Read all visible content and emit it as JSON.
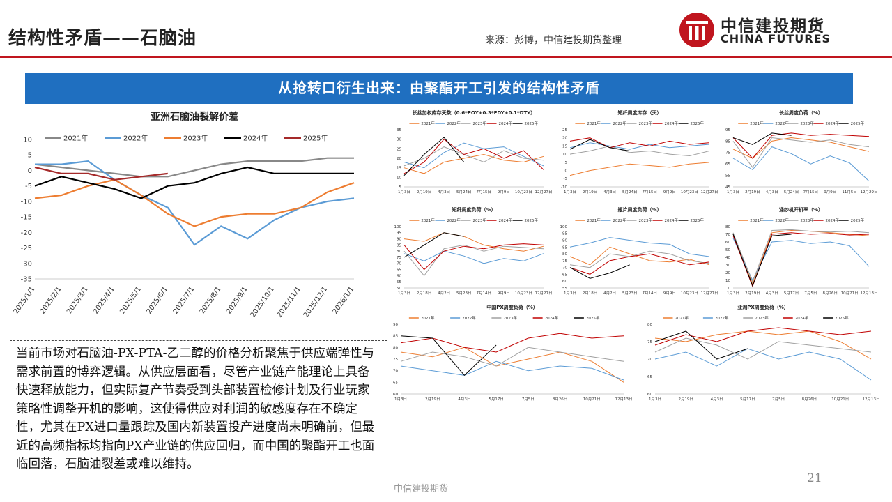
{
  "header": {
    "title": "结构性矛盾——石脑油",
    "source": "来源：彭博，中信建投期货整理",
    "logo_cn": "中信建投期货",
    "logo_en": "CHINA FUTURES",
    "brand_color": "#c0151e"
  },
  "banner": {
    "text": "从抢转口衍生出来：由聚酯开工引发的结构性矛盾",
    "color": "#1f6fc0"
  },
  "commentary": "当前市场对石脑油-PX-PTA-乙二醇的价格分析聚焦于供应端弹性与需求前置的博弈逻辑。从供应层面看，尽管产业链产能理论上具备快速释放能力，但实际复产节奏受到头部装置检修计划及行业玩家策略性调整开机的影响，这使得供应对利润的敏感度存在不确定性，尤其在PX进口量跟踪及国内新装置投产进度尚未明确前，但最近的高频指标均指向PX产业链的供应回归，而中国的聚酯开工也面临回落，石脑油裂差或难以维持。",
  "footer": {
    "text": "中信建投期货",
    "page": "21"
  },
  "chart_data": [
    {
      "type": "line",
      "title": "亚洲石脑油裂解价差",
      "x": [
        "2025/1/1",
        "2025/2/1",
        "2025/3/1",
        "2025/4/1",
        "2025/5/1",
        "2025/6/1",
        "2025/7/1",
        "2025/8/1",
        "2025/9/1",
        "2025/10/1",
        "2025/11/1",
        "2025/12/1",
        "2026/1/1"
      ],
      "ylim": [
        -35,
        10
      ],
      "yticks": [
        10,
        5,
        0,
        -5,
        -10,
        -15,
        -20,
        -25,
        -30,
        -35
      ],
      "legend": "top",
      "series": [
        {
          "name": "2021年",
          "color": "#888888",
          "values": [
            2,
            1,
            0,
            -1,
            -2,
            -2,
            0,
            2,
            3,
            3,
            3,
            4,
            4
          ]
        },
        {
          "name": "2022年",
          "color": "#5b9bd5",
          "values": [
            2,
            2,
            3,
            -3,
            -8,
            -12,
            -24,
            -18,
            -22,
            -16,
            -12,
            -10,
            -9
          ]
        },
        {
          "name": "2023年",
          "color": "#ed7d31",
          "values": [
            -9,
            -8,
            -5,
            -3,
            -8,
            -14,
            -18,
            -15,
            -14,
            -14,
            -12,
            -7,
            -4
          ]
        },
        {
          "name": "2024年",
          "color": "#000000",
          "values": [
            -5,
            -2,
            -4,
            -6,
            -9,
            -5,
            -4,
            -1,
            1,
            -1,
            -1,
            -1,
            -1
          ]
        },
        {
          "name": "2025年",
          "color": "#a52a2a",
          "values": [
            1,
            -1,
            -1,
            -3,
            -2,
            -1,
            null,
            null,
            null,
            null,
            null,
            null,
            null
          ]
        }
      ]
    },
    {
      "type": "line",
      "title": "长丝加权库存天数（0.6*POY+0.3*FDY+0.1*DTY）",
      "x": [
        "1月3日",
        "2月19日",
        "4月3日",
        "5月24日",
        "7月15日",
        "9月9日",
        "10月23日",
        "12月27日"
      ],
      "ylim": [
        5,
        35
      ],
      "yticks": [
        35,
        30,
        25,
        20,
        15,
        10,
        5
      ],
      "series": [
        {
          "name": "2021年",
          "color": "#ed7d31",
          "values": [
            15,
            12,
            18,
            20,
            22,
            19,
            18,
            21
          ]
        },
        {
          "name": "2022年",
          "color": "#5b9bd5",
          "values": [
            18,
            15,
            23,
            28,
            25,
            26,
            21,
            16
          ]
        },
        {
          "name": "2023年",
          "color": "#a0a0a0",
          "values": [
            16,
            20,
            26,
            22,
            18,
            24,
            20,
            19
          ]
        },
        {
          "name": "2024年",
          "color": "#c00000",
          "values": [
            12,
            18,
            30,
            22,
            25,
            20,
            24,
            14
          ]
        },
        {
          "name": "2025年",
          "color": "#000000",
          "values": [
            11,
            22,
            31,
            18,
            null,
            null,
            null,
            null
          ]
        }
      ]
    },
    {
      "type": "line",
      "title": "短纤周度库存（天）",
      "x": [
        "1月3日",
        "2月19日",
        "4月3日",
        "5月24日",
        "7月15日",
        "9月9日",
        "10月23日",
        "12月27日"
      ],
      "ylim": [
        -10,
        25
      ],
      "yticks": [
        25,
        20,
        15,
        10,
        5,
        0,
        -5,
        -10
      ],
      "series": [
        {
          "name": "2021年",
          "color": "#ed7d31",
          "values": [
            -3,
            0,
            2,
            4,
            3,
            2,
            4,
            5
          ]
        },
        {
          "name": "2022年",
          "color": "#5b9bd5",
          "values": [
            14,
            17,
            15,
            13,
            16,
            14,
            15,
            16
          ]
        },
        {
          "name": "2023年",
          "color": "#a0a0a0",
          "values": [
            10,
            12,
            15,
            11,
            12,
            10,
            9,
            12
          ]
        },
        {
          "name": "2024年",
          "color": "#c00000",
          "values": [
            18,
            20,
            14,
            17,
            15,
            18,
            16,
            17
          ]
        },
        {
          "name": "2025年",
          "color": "#000000",
          "values": [
            13,
            19,
            14,
            12,
            null,
            null,
            null,
            null
          ]
        }
      ]
    },
    {
      "type": "line",
      "title": "长丝周度负荷（%）",
      "x": [
        "1月3日",
        "2月19日",
        "4月3日",
        "5月24日",
        "7月15日",
        "9月9日",
        "11月5日",
        "12月29日"
      ],
      "ylim": [
        45,
        95
      ],
      "yticks": [
        95,
        85,
        75,
        65,
        55,
        45
      ],
      "series": [
        {
          "name": "2021年",
          "color": "#ed7d31",
          "values": [
            78,
            70,
            85,
            88,
            86,
            84,
            80,
            76
          ]
        },
        {
          "name": "2022年",
          "color": "#5b9bd5",
          "values": [
            70,
            60,
            80,
            74,
            65,
            72,
            66,
            50
          ]
        },
        {
          "name": "2023年",
          "color": "#a0a0a0",
          "values": [
            85,
            62,
            88,
            86,
            84,
            86,
            82,
            80
          ]
        },
        {
          "name": "2024年",
          "color": "#c00000",
          "values": [
            88,
            70,
            90,
            92,
            90,
            91,
            90,
            89
          ]
        },
        {
          "name": "2025年",
          "color": "#000000",
          "values": [
            88,
            82,
            92,
            90,
            null,
            null,
            null,
            null
          ]
        }
      ]
    },
    {
      "type": "line",
      "title": "短纤周度负荷（%）",
      "x": [
        "1月3日",
        "2月18日",
        "4月2日",
        "5月23日",
        "7月14日",
        "9月9日",
        "10月23日",
        "12月27日"
      ],
      "ylim": [
        50,
        100
      ],
      "yticks": [
        100,
        95,
        90,
        85,
        80,
        75,
        70,
        65,
        60,
        55,
        50
      ],
      "series": [
        {
          "name": "2021年",
          "color": "#ed7d31",
          "values": [
            90,
            88,
            95,
            92,
            85,
            82,
            80,
            84
          ]
        },
        {
          "name": "2022年",
          "color": "#5b9bd5",
          "values": [
            78,
            72,
            80,
            76,
            70,
            74,
            72,
            78
          ]
        },
        {
          "name": "2023年",
          "color": "#a0a0a0",
          "values": [
            80,
            60,
            82,
            85,
            80,
            84,
            83,
            82
          ]
        },
        {
          "name": "2024年",
          "color": "#c00000",
          "values": [
            85,
            65,
            80,
            84,
            82,
            85,
            86,
            85
          ]
        },
        {
          "name": "2025年",
          "color": "#000000",
          "values": [
            75,
            85,
            95,
            92,
            null,
            null,
            null,
            null
          ]
        }
      ]
    },
    {
      "type": "line",
      "title": "瓶片周度负荷（%）",
      "x": [
        "1月3日",
        "2月18日",
        "4月2日",
        "5月23日",
        "7月14日",
        "9月9日",
        "10月23日",
        "12月27日"
      ],
      "ylim": [
        55,
        100
      ],
      "yticks": [
        100,
        95,
        90,
        85,
        80,
        75,
        70,
        65,
        60,
        55
      ],
      "series": [
        {
          "name": "2021年",
          "color": "#ed7d31",
          "values": [
            78,
            72,
            85,
            80,
            75,
            74,
            76,
            72
          ]
        },
        {
          "name": "2022年",
          "color": "#5b9bd5",
          "values": [
            85,
            88,
            92,
            90,
            88,
            87,
            80,
            78
          ]
        },
        {
          "name": "2023年",
          "color": "#a0a0a0",
          "values": [
            72,
            70,
            80,
            78,
            82,
            80,
            75,
            73
          ]
        },
        {
          "name": "2024年",
          "color": "#c00000",
          "values": [
            70,
            65,
            75,
            78,
            80,
            76,
            72,
            74
          ]
        },
        {
          "name": "2025年",
          "color": "#000000",
          "values": [
            70,
            62,
            66,
            72,
            null,
            null,
            null,
            null
          ]
        }
      ]
    },
    {
      "type": "line",
      "title": "涤纱机开机率（%）",
      "x": [
        "1月3日",
        "2月19日",
        "4月3日",
        "5月17日",
        "7月5日",
        "8月26日",
        "10月21日",
        "12月13日"
      ],
      "ylim": [
        0,
        80
      ],
      "yticks": [
        80,
        70,
        60,
        50,
        40,
        30,
        20,
        10,
        0
      ],
      "series": [
        {
          "name": "2021年",
          "color": "#ed7d31",
          "values": [
            70,
            5,
            72,
            75,
            74,
            72,
            70,
            68
          ]
        },
        {
          "name": "2022年",
          "color": "#5b9bd5",
          "values": [
            65,
            10,
            60,
            62,
            58,
            60,
            55,
            28
          ]
        },
        {
          "name": "2023年",
          "color": "#a0a0a0",
          "values": [
            72,
            8,
            75,
            76,
            74,
            73,
            74,
            72
          ]
        },
        {
          "name": "2024年",
          "color": "#c00000",
          "values": [
            68,
            2,
            70,
            72,
            70,
            71,
            69,
            70
          ]
        },
        {
          "name": "2025年",
          "color": "#000000",
          "values": [
            70,
            3,
            68,
            70,
            null,
            null,
            null,
            null
          ]
        }
      ]
    },
    {
      "type": "line",
      "title": "中国PX周度负荷（%）",
      "x": [
        "1月3日",
        "2月19日",
        "4月3日",
        "5月17日",
        "7月5日",
        "8月26日",
        "10月21日",
        "12月13日"
      ],
      "ylim": [
        60,
        90
      ],
      "yticks": [
        90,
        85,
        80,
        75,
        70,
        65,
        60
      ],
      "series": [
        {
          "name": "2021年",
          "color": "#ed7d31",
          "values": [
            78,
            76,
            80,
            72,
            75,
            78,
            74,
            65
          ]
        },
        {
          "name": "2022年",
          "color": "#5b9bd5",
          "values": [
            72,
            70,
            68,
            74,
            70,
            72,
            71,
            66
          ]
        },
        {
          "name": "2023年",
          "color": "#a0a0a0",
          "values": [
            74,
            78,
            76,
            72,
            80,
            78,
            76,
            74
          ]
        },
        {
          "name": "2024年",
          "color": "#c00000",
          "values": [
            82,
            84,
            80,
            78,
            84,
            86,
            84,
            85
          ]
        },
        {
          "name": "2025年",
          "color": "#000000",
          "values": [
            85,
            84,
            68,
            81,
            null,
            null,
            null,
            null
          ]
        }
      ]
    },
    {
      "type": "line",
      "title": "亚洲PX周度负荷（%）",
      "x": [
        "1月3日",
        "2月19日",
        "4月3日",
        "5月17日",
        "7月5日",
        "8月26日",
        "10月21日",
        "12月13日"
      ],
      "ylim": [
        60,
        80
      ],
      "yticks": [
        80,
        75,
        70,
        65,
        60
      ],
      "series": [
        {
          "name": "2021年",
          "color": "#ed7d31",
          "values": [
            76,
            75,
            77,
            78,
            77,
            78,
            75,
            70
          ]
        },
        {
          "name": "2022年",
          "color": "#5b9bd5",
          "values": [
            70,
            72,
            68,
            73,
            70,
            72,
            70,
            64
          ]
        },
        {
          "name": "2023年",
          "color": "#a0a0a0",
          "values": [
            72,
            76,
            74,
            70,
            75,
            74,
            73,
            72
          ]
        },
        {
          "name": "2024年",
          "color": "#c00000",
          "values": [
            74,
            77,
            75,
            78,
            79,
            78,
            77,
            78
          ]
        },
        {
          "name": "2025年",
          "color": "#000000",
          "values": [
            75,
            78,
            70,
            73,
            null,
            null,
            null,
            null
          ]
        }
      ]
    }
  ]
}
